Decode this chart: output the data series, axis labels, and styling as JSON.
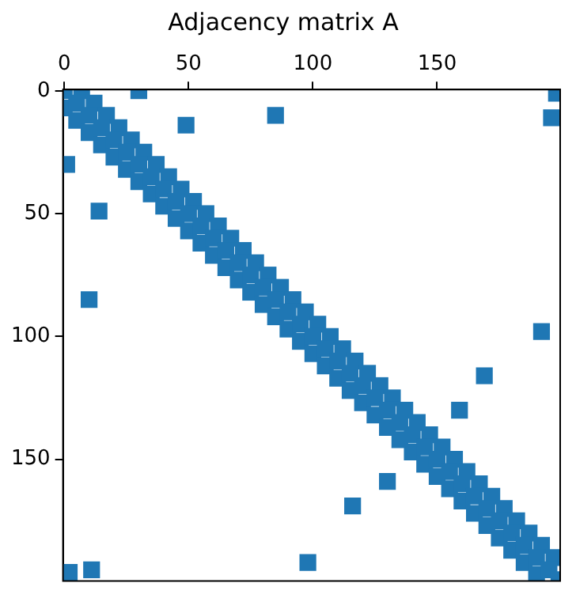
{
  "chart_data": {
    "type": "scatter",
    "title": "Adjacency matrix A",
    "marker": "square",
    "grid": false,
    "legend": false,
    "xlim": [
      -0.5,
      199.5
    ],
    "xticks": [
      0,
      50,
      100,
      150
    ],
    "ylim": [
      199.5,
      -0.5
    ],
    "yticks": [
      0,
      50,
      100,
      150
    ],
    "series": [
      {
        "color": "#1f77b4",
        "x": [
          0,
          5,
          10,
          15,
          20,
          25,
          30,
          35,
          40,
          45,
          50,
          55,
          60,
          65,
          70,
          75,
          80,
          85,
          90,
          95,
          100,
          105,
          110,
          115,
          120,
          125,
          130,
          135,
          140,
          145,
          150,
          155,
          160,
          165,
          170,
          175,
          180,
          185,
          190,
          195,
          199
        ],
        "values": [
          0,
          5,
          10,
          15,
          20,
          25,
          30,
          35,
          40,
          45,
          50,
          55,
          60,
          65,
          70,
          75,
          80,
          85,
          90,
          95,
          100,
          105,
          110,
          115,
          120,
          125,
          130,
          135,
          140,
          145,
          150,
          155,
          160,
          165,
          170,
          175,
          180,
          185,
          190,
          195,
          199
        ]
      },
      {
        "color": "#1f77b4",
        "x": [
          7,
          12,
          17,
          22,
          27,
          32,
          37,
          42,
          47,
          52,
          57,
          62,
          67,
          72,
          77,
          82,
          87,
          92,
          97,
          102,
          107,
          112,
          117,
          122,
          127,
          132,
          137,
          142,
          147,
          152,
          157,
          162,
          167,
          172,
          177,
          182,
          187,
          192,
          197
        ],
        "values": [
          0,
          5,
          10,
          15,
          20,
          25,
          30,
          35,
          40,
          45,
          50,
          55,
          60,
          65,
          70,
          75,
          80,
          85,
          90,
          95,
          100,
          105,
          110,
          115,
          120,
          125,
          130,
          135,
          140,
          145,
          150,
          155,
          160,
          165,
          170,
          175,
          180,
          185,
          190
        ]
      },
      {
        "color": "#1f77b4",
        "x": [
          0,
          5,
          10,
          15,
          20,
          25,
          30,
          35,
          40,
          45,
          50,
          55,
          60,
          65,
          70,
          75,
          80,
          85,
          90,
          95,
          100,
          105,
          110,
          115,
          120,
          125,
          130,
          135,
          140,
          145,
          150,
          155,
          160,
          165,
          170,
          175,
          180,
          185,
          190
        ],
        "values": [
          7,
          12,
          17,
          22,
          27,
          32,
          37,
          42,
          47,
          52,
          57,
          62,
          67,
          72,
          77,
          82,
          87,
          92,
          97,
          102,
          107,
          112,
          117,
          122,
          127,
          132,
          137,
          142,
          147,
          152,
          157,
          162,
          167,
          172,
          177,
          182,
          187,
          192,
          197
        ]
      },
      {
        "color": "#1f77b4",
        "x": [
          30,
          49,
          85,
          198,
          196,
          1,
          14,
          10,
          105,
          192,
          169,
          159,
          130,
          116,
          98,
          11,
          2
        ],
        "values": [
          0,
          14,
          10,
          1,
          11,
          30,
          49,
          85,
          null,
          98,
          116,
          130,
          159,
          169,
          192,
          195,
          196
        ]
      }
    ]
  }
}
